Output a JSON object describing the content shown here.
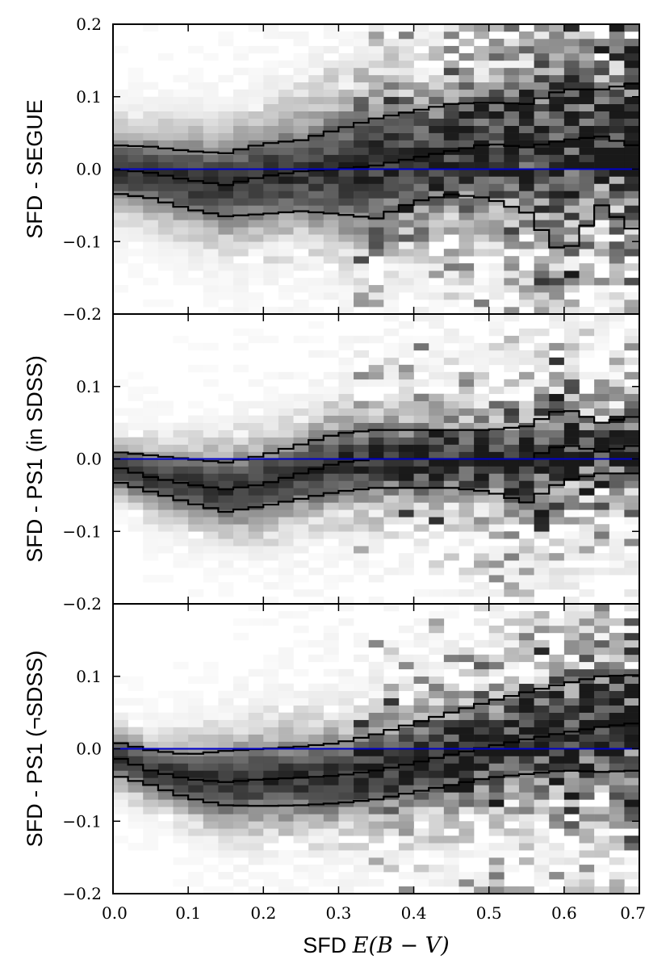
{
  "chart_data": [
    {
      "type": "heatmap",
      "panel": "top",
      "ylabel": "SFD - SEGUE",
      "xlim": [
        0.0,
        0.7
      ],
      "ylim": [
        -0.2,
        0.2
      ],
      "x_ticks": [
        "0.0",
        "0.1",
        "0.2",
        "0.3",
        "0.4",
        "0.5",
        "0.6",
        "0.7"
      ],
      "y_ticks": [
        "−0.2",
        "−0.1",
        "0.0",
        "0.1",
        "0.2"
      ],
      "reference_line": {
        "y": 0.0,
        "color": "#0000cc"
      },
      "series": [
        {
          "x": [
            0.0,
            0.05,
            0.1,
            0.15,
            0.2,
            0.25,
            0.3,
            0.35,
            0.4,
            0.45,
            0.5,
            0.55,
            0.6,
            0.65,
            0.7
          ],
          "values": [
            0.033,
            0.031,
            0.025,
            0.022,
            0.035,
            0.04,
            0.055,
            0.07,
            0.08,
            0.09,
            0.092,
            0.09,
            0.11,
            0.11,
            0.12
          ]
        },
        {
          "x": [
            0.0,
            0.05,
            0.1,
            0.15,
            0.2,
            0.25,
            0.3,
            0.35,
            0.4,
            0.45,
            0.5,
            0.55,
            0.6,
            0.65,
            0.7
          ],
          "values": [
            0.0,
            -0.005,
            -0.015,
            -0.022,
            -0.01,
            -0.003,
            0.0,
            0.005,
            0.015,
            0.025,
            0.035,
            0.03,
            0.04,
            0.045,
            0.03
          ]
        },
        {
          "x": [
            0.0,
            0.05,
            0.1,
            0.15,
            0.2,
            0.25,
            0.3,
            0.35,
            0.4,
            0.45,
            0.5,
            0.55,
            0.6,
            0.65,
            0.7
          ],
          "values": [
            -0.033,
            -0.04,
            -0.055,
            -0.065,
            -0.062,
            -0.058,
            -0.062,
            -0.068,
            -0.045,
            -0.035,
            -0.04,
            -0.06,
            -0.12,
            -0.05,
            -0.09
          ]
        }
      ]
    },
    {
      "type": "heatmap",
      "panel": "middle",
      "ylabel": "SFD - PS1 (in SDSS)",
      "xlim": [
        0.0,
        0.7
      ],
      "ylim": [
        -0.2,
        0.2
      ],
      "x_ticks": [
        "0.0",
        "0.1",
        "0.2",
        "0.3",
        "0.4",
        "0.5",
        "0.6",
        "0.7"
      ],
      "y_ticks": [
        "−0.2",
        "−0.1",
        "0.0",
        "0.1",
        "0.2"
      ],
      "reference_line": {
        "y": 0.0,
        "color": "#0000cc"
      },
      "series": [
        {
          "x": [
            0.0,
            0.05,
            0.1,
            0.15,
            0.2,
            0.25,
            0.3,
            0.35,
            0.4,
            0.45,
            0.5,
            0.55,
            0.6,
            0.65,
            0.7
          ],
          "values": [
            0.01,
            0.005,
            0.0,
            -0.005,
            0.005,
            0.02,
            0.035,
            0.04,
            0.04,
            0.04,
            0.04,
            0.045,
            0.07,
            0.05,
            0.06
          ]
        },
        {
          "x": [
            0.0,
            0.05,
            0.1,
            0.15,
            0.2,
            0.25,
            0.3,
            0.35,
            0.4,
            0.45,
            0.5,
            0.55,
            0.6,
            0.65,
            0.7
          ],
          "values": [
            -0.01,
            -0.025,
            -0.035,
            -0.042,
            -0.035,
            -0.02,
            -0.005,
            0.0,
            0.0,
            0.0,
            0.0,
            0.0,
            0.02,
            0.01,
            0.02
          ]
        },
        {
          "x": [
            0.0,
            0.05,
            0.1,
            0.15,
            0.2,
            0.25,
            0.3,
            0.35,
            0.4,
            0.45,
            0.5,
            0.55,
            0.6,
            0.65,
            0.7
          ],
          "values": [
            -0.03,
            -0.045,
            -0.06,
            -0.073,
            -0.065,
            -0.055,
            -0.045,
            -0.04,
            -0.04,
            -0.04,
            -0.045,
            -0.06,
            -0.03,
            -0.02,
            -0.02
          ]
        }
      ]
    },
    {
      "type": "heatmap",
      "panel": "bottom",
      "ylabel": "SFD - PS1 (¬SDSS)",
      "xlabel_prefix": "SFD ",
      "xlabel_math": "E(B − V)",
      "xlim": [
        0.0,
        0.7
      ],
      "ylim": [
        -0.2,
        0.2
      ],
      "x_ticks": [
        "0.0",
        "0.1",
        "0.2",
        "0.3",
        "0.4",
        "0.5",
        "0.6",
        "0.7"
      ],
      "y_ticks": [
        "−0.2",
        "−0.1",
        "0.0",
        "0.1",
        "0.2"
      ],
      "reference_line": {
        "y": 0.0,
        "color": "#0000cc"
      },
      "series": [
        {
          "x": [
            0.0,
            0.05,
            0.1,
            0.15,
            0.2,
            0.25,
            0.3,
            0.35,
            0.4,
            0.45,
            0.5,
            0.55,
            0.6,
            0.65,
            0.7
          ],
          "values": [
            0.01,
            -0.002,
            -0.008,
            -0.003,
            0.0,
            0.003,
            0.008,
            0.02,
            0.035,
            0.05,
            0.065,
            0.078,
            0.09,
            0.1,
            0.102
          ]
        },
        {
          "x": [
            0.0,
            0.05,
            0.1,
            0.15,
            0.2,
            0.25,
            0.3,
            0.35,
            0.4,
            0.45,
            0.5,
            0.55,
            0.6,
            0.65,
            0.7
          ],
          "values": [
            -0.01,
            -0.03,
            -0.042,
            -0.046,
            -0.042,
            -0.04,
            -0.037,
            -0.03,
            -0.02,
            -0.008,
            0.003,
            0.013,
            0.022,
            0.03,
            0.036
          ]
        },
        {
          "x": [
            0.0,
            0.05,
            0.1,
            0.15,
            0.2,
            0.25,
            0.3,
            0.35,
            0.4,
            0.45,
            0.5,
            0.55,
            0.6,
            0.65,
            0.7
          ],
          "values": [
            -0.036,
            -0.05,
            -0.068,
            -0.078,
            -0.079,
            -0.078,
            -0.075,
            -0.07,
            -0.06,
            -0.05,
            -0.04,
            -0.035,
            -0.03,
            -0.032,
            -0.03
          ]
        }
      ]
    }
  ]
}
